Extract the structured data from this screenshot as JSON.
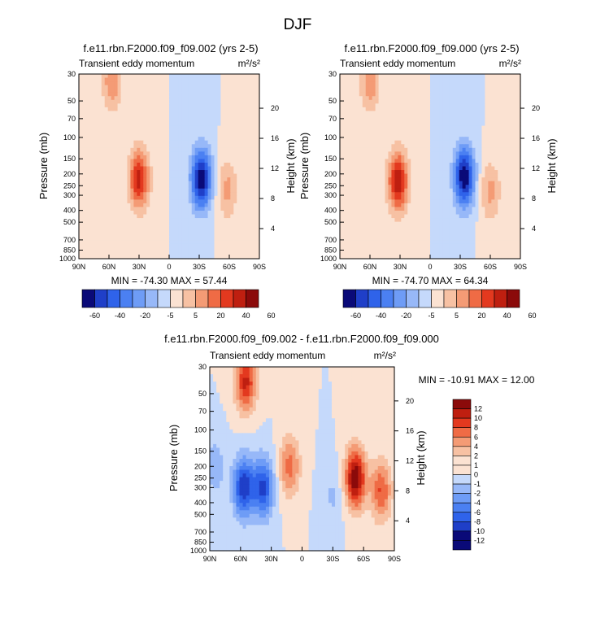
{
  "page_title": "DJF",
  "colors": {
    "diverging_palette": [
      "#0a0a78",
      "#1f3fc8",
      "#2f63ea",
      "#4b80f2",
      "#6e9cf6",
      "#97b8f8",
      "#c5d9fb",
      "#fbe2d2",
      "#f7c1a3",
      "#f49b75",
      "#ef6b45",
      "#e3391f",
      "#bf1f10",
      "#8b0a0a"
    ],
    "axis": "#000000"
  },
  "chart_data": [
    {
      "type": "heatmap",
      "title": "f.e11.rbn.F2000.f09_f09.002 (yrs 2-5)",
      "subtitle_left": "Transient eddy momentum",
      "units": "m²/s²",
      "xlabel": "",
      "ylabel": "Pressure (mb)",
      "ylabel_right": "Height (km)",
      "x_ticks": [
        "90N",
        "60N",
        "30N",
        "0",
        "30S",
        "60S",
        "90S"
      ],
      "y_ticks": [
        "30",
        "50",
        "70",
        "100",
        "150",
        "200",
        "250",
        "300",
        "400",
        "500",
        "700",
        "850",
        "1000"
      ],
      "y_ticks_right": [
        "20",
        "16",
        "12",
        "8",
        "4"
      ],
      "stats": "MIN = -74.30  MAX = 57.44",
      "min": -74.3,
      "max": 57.44,
      "features": [
        {
          "lat": 30,
          "p": 220,
          "value": 57
        },
        {
          "lat": 57,
          "p": 35,
          "value": 30
        },
        {
          "lat": -32,
          "p": 220,
          "value": -74
        },
        {
          "lat": -58,
          "p": 270,
          "value": 25
        },
        {
          "lat": -78,
          "p": 150,
          "value": 3
        }
      ],
      "colorbar_labels": [
        "-60",
        "-40",
        "-20",
        "-5",
        "5",
        "20",
        "40",
        "60"
      ]
    },
    {
      "type": "heatmap",
      "title": "f.e11.rbn.F2000.f09_f09.000 (yrs 2-5)",
      "subtitle_left": "Transient eddy momentum",
      "units": "m²/s²",
      "xlabel": "",
      "ylabel": "Pressure (mb)",
      "ylabel_right": "Height (km)",
      "x_ticks": [
        "90N",
        "60N",
        "30N",
        "0",
        "30S",
        "60S",
        "90S"
      ],
      "y_ticks": [
        "30",
        "50",
        "70",
        "100",
        "150",
        "200",
        "250",
        "300",
        "400",
        "500",
        "700",
        "850",
        "1000"
      ],
      "y_ticks_right": [
        "20",
        "16",
        "12",
        "8",
        "4"
      ],
      "stats": "MIN = -74.70  MAX = 64.34",
      "min": -74.7,
      "max": 64.34,
      "features": [
        {
          "lat": 32,
          "p": 230,
          "value": 64
        },
        {
          "lat": 60,
          "p": 35,
          "value": 30
        },
        {
          "lat": -34,
          "p": 210,
          "value": -74
        },
        {
          "lat": -60,
          "p": 280,
          "value": 25
        },
        {
          "lat": -78,
          "p": 150,
          "value": 3
        }
      ],
      "colorbar_labels": [
        "-60",
        "-40",
        "-20",
        "-5",
        "5",
        "20",
        "40",
        "60"
      ]
    },
    {
      "type": "heatmap",
      "title": "f.e11.rbn.F2000.f09_f09.002 - f.e11.rbn.F2000.f09_f09.000",
      "subtitle_left": "Transient eddy momentum",
      "units": "m²/s²",
      "xlabel": "",
      "ylabel": "Pressure (mb)",
      "ylabel_right": "Height (km)",
      "x_ticks": [
        "90N",
        "60N",
        "30N",
        "0",
        "30S",
        "60S",
        "90S"
      ],
      "y_ticks": [
        "30",
        "50",
        "70",
        "100",
        "150",
        "200",
        "250",
        "300",
        "400",
        "500",
        "700",
        "850",
        "1000"
      ],
      "y_ticks_right": [
        "20",
        "16",
        "12",
        "8",
        "4"
      ],
      "stats": "MIN = -10.91  MAX = 12.00",
      "min": -10.91,
      "max": 12.0,
      "features": [
        {
          "lat": 57,
          "p": 300,
          "value": -10
        },
        {
          "lat": 38,
          "p": 300,
          "value": -9
        },
        {
          "lat": 55,
          "p": 40,
          "value": 9
        },
        {
          "lat": 12,
          "p": 200,
          "value": 6
        },
        {
          "lat": -52,
          "p": 250,
          "value": 12
        },
        {
          "lat": -77,
          "p": 320,
          "value": 7
        },
        {
          "lat": -30,
          "p": 350,
          "value": -2
        },
        {
          "lat": 85,
          "p": 200,
          "value": -3
        }
      ],
      "colorbar_labels": [
        "12",
        "10",
        "8",
        "6",
        "4",
        "2",
        "1",
        "0",
        "-1",
        "-2",
        "-4",
        "-6",
        "-8",
        "-10",
        "-12"
      ]
    }
  ]
}
